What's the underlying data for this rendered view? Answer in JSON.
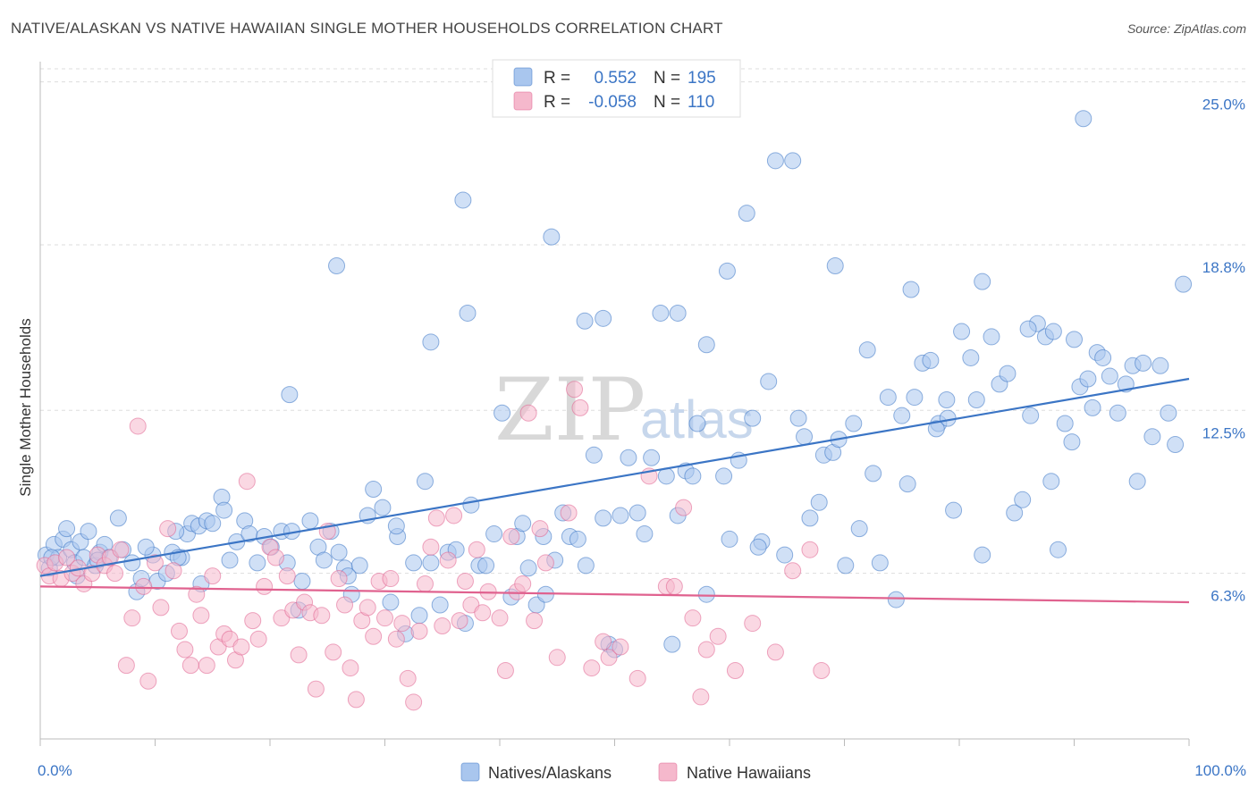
{
  "title": "NATIVE/ALASKAN VS NATIVE HAWAIIAN SINGLE MOTHER HOUSEHOLDS CORRELATION CHART",
  "source": "Source: ZipAtlas.com",
  "watermark": {
    "zip": "ZIP",
    "atlas": "atlas"
  },
  "colors": {
    "blue": "#3b75c5",
    "blue_fill": "#a9c6ee",
    "pink": "#e0628f",
    "pink_fill": "#f5b8cc",
    "grid": "#dddddd"
  },
  "legend": {
    "rows": [
      {
        "r_label": "R =",
        "r_value": "0.552",
        "n_label": "N =",
        "n_value": "195"
      },
      {
        "r_label": "R =",
        "r_value": "-0.058",
        "n_label": "N =",
        "n_value": "110"
      }
    ]
  },
  "chart_data": {
    "type": "scatter",
    "ylabel": "Single Mother Households",
    "xlim": [
      0,
      100
    ],
    "ylim": [
      0,
      25.7
    ],
    "y_ticks": [
      {
        "value": 6.3,
        "label": "6.3%"
      },
      {
        "value": 12.5,
        "label": "12.5%"
      },
      {
        "value": 18.8,
        "label": "18.8%"
      },
      {
        "value": 25.0,
        "label": "25.0%"
      }
    ],
    "x_tick_labels": {
      "left": "0.0%",
      "right": "100.0%"
    },
    "grid": true,
    "legend_position": "top-center",
    "series": [
      {
        "name": "Natives/Alaskans",
        "color": "#3b75c5",
        "trend": {
          "x": [
            0,
            100
          ],
          "y": [
            6.2,
            13.7
          ]
        },
        "points": [
          [
            0.5,
            7.0
          ],
          [
            0.8,
            6.5
          ],
          [
            1.2,
            7.4
          ],
          [
            1.6,
            6.9
          ],
          [
            2.0,
            7.6
          ],
          [
            2.3,
            8.0
          ],
          [
            2.7,
            7.2
          ],
          [
            3.0,
            6.7
          ],
          [
            3.5,
            7.5
          ],
          [
            3.8,
            6.9
          ],
          [
            4.2,
            7.9
          ],
          [
            4.8,
            6.6
          ],
          [
            5.2,
            7.1
          ],
          [
            5.6,
            7.4
          ],
          [
            6.0,
            6.9
          ],
          [
            6.8,
            8.4
          ],
          [
            7.2,
            7.2
          ],
          [
            8.0,
            6.7
          ],
          [
            8.4,
            5.6
          ],
          [
            8.8,
            6.1
          ],
          [
            9.8,
            7.0
          ],
          [
            10.2,
            6.0
          ],
          [
            11.0,
            6.3
          ],
          [
            11.5,
            7.1
          ],
          [
            12.3,
            6.9
          ],
          [
            12.8,
            7.8
          ],
          [
            13.2,
            8.2
          ],
          [
            13.8,
            8.1
          ],
          [
            14.5,
            8.3
          ],
          [
            15.0,
            8.2
          ],
          [
            15.8,
            9.2
          ],
          [
            16.0,
            8.7
          ],
          [
            16.5,
            6.8
          ],
          [
            17.1,
            7.5
          ],
          [
            17.8,
            8.3
          ],
          [
            18.2,
            7.8
          ],
          [
            18.9,
            6.7
          ],
          [
            19.5,
            7.7
          ],
          [
            20.1,
            7.3
          ],
          [
            21.0,
            7.9
          ],
          [
            21.5,
            6.7
          ],
          [
            21.9,
            7.9
          ],
          [
            22.5,
            4.9
          ],
          [
            22.8,
            6.0
          ],
          [
            23.5,
            8.3
          ],
          [
            24.2,
            7.3
          ],
          [
            24.7,
            6.8
          ],
          [
            25.3,
            7.9
          ],
          [
            26.0,
            7.1
          ],
          [
            26.5,
            6.5
          ],
          [
            27.1,
            5.5
          ],
          [
            27.8,
            6.6
          ],
          [
            28.5,
            8.5
          ],
          [
            29.0,
            9.5
          ],
          [
            29.8,
            8.8
          ],
          [
            30.5,
            5.2
          ],
          [
            31.1,
            7.7
          ],
          [
            31.8,
            4.0
          ],
          [
            32.5,
            6.7
          ],
          [
            33.0,
            4.7
          ],
          [
            33.5,
            9.8
          ],
          [
            34.0,
            6.7
          ],
          [
            34.8,
            5.1
          ],
          [
            35.5,
            7.1
          ],
          [
            36.2,
            7.2
          ],
          [
            37.0,
            4.4
          ],
          [
            37.5,
            8.9
          ],
          [
            38.2,
            6.6
          ],
          [
            38.8,
            6.6
          ],
          [
            39.5,
            7.8
          ],
          [
            40.2,
            12.4
          ],
          [
            41.0,
            5.4
          ],
          [
            41.5,
            7.7
          ],
          [
            42.0,
            8.2
          ],
          [
            42.5,
            6.5
          ],
          [
            43.2,
            5.1
          ],
          [
            43.8,
            7.7
          ],
          [
            44.8,
            6.8
          ],
          [
            45.5,
            8.6
          ],
          [
            46.1,
            7.7
          ],
          [
            46.8,
            7.6
          ],
          [
            47.5,
            6.6
          ],
          [
            48.2,
            10.8
          ],
          [
            49.0,
            8.4
          ],
          [
            49.5,
            3.6
          ],
          [
            50.0,
            3.4
          ],
          [
            50.5,
            8.5
          ],
          [
            51.2,
            10.7
          ],
          [
            52.0,
            8.6
          ],
          [
            52.6,
            7.8
          ],
          [
            53.2,
            10.7
          ],
          [
            54.0,
            16.2
          ],
          [
            54.5,
            10.0
          ],
          [
            55.0,
            3.6
          ],
          [
            55.5,
            8.5
          ],
          [
            56.2,
            10.2
          ],
          [
            56.8,
            10.0
          ],
          [
            57.2,
            12.0
          ],
          [
            58.0,
            15.0
          ],
          [
            59.5,
            10.0
          ],
          [
            60.0,
            7.6
          ],
          [
            60.8,
            10.6
          ],
          [
            61.5,
            20.0
          ],
          [
            62.0,
            12.2
          ],
          [
            62.8,
            7.5
          ],
          [
            63.4,
            13.6
          ],
          [
            64.0,
            22.0
          ],
          [
            64.8,
            7.0
          ],
          [
            65.5,
            22.0
          ],
          [
            66.0,
            12.2
          ],
          [
            67.0,
            8.4
          ],
          [
            67.8,
            9.0
          ],
          [
            68.2,
            10.8
          ],
          [
            69.0,
            10.9
          ],
          [
            69.5,
            11.4
          ],
          [
            70.1,
            6.6
          ],
          [
            70.8,
            12.0
          ],
          [
            71.3,
            8.0
          ],
          [
            72.0,
            14.8
          ],
          [
            72.5,
            10.1
          ],
          [
            73.1,
            6.7
          ],
          [
            73.8,
            13.0
          ],
          [
            74.5,
            5.3
          ],
          [
            75.0,
            12.3
          ],
          [
            75.5,
            9.7
          ],
          [
            76.1,
            13.0
          ],
          [
            76.8,
            14.3
          ],
          [
            77.5,
            14.4
          ],
          [
            78.2,
            12.0
          ],
          [
            78.9,
            12.9
          ],
          [
            79.5,
            8.7
          ],
          [
            80.2,
            15.5
          ],
          [
            81.0,
            14.5
          ],
          [
            81.5,
            12.9
          ],
          [
            82.0,
            7.0
          ],
          [
            82.8,
            15.3
          ],
          [
            83.5,
            13.5
          ],
          [
            84.2,
            13.9
          ],
          [
            84.8,
            8.6
          ],
          [
            85.5,
            9.1
          ],
          [
            86.2,
            12.3
          ],
          [
            86.8,
            15.8
          ],
          [
            87.5,
            15.3
          ],
          [
            88.0,
            9.8
          ],
          [
            88.6,
            7.2
          ],
          [
            89.2,
            12.0
          ],
          [
            89.8,
            11.3
          ],
          [
            90.5,
            13.4
          ],
          [
            91.2,
            13.7
          ],
          [
            91.6,
            12.6
          ],
          [
            92.0,
            14.7
          ],
          [
            92.5,
            14.5
          ],
          [
            93.1,
            13.8
          ],
          [
            93.8,
            12.4
          ],
          [
            94.5,
            13.5
          ],
          [
            95.1,
            14.2
          ],
          [
            95.5,
            9.8
          ],
          [
            96.0,
            14.3
          ],
          [
            96.8,
            11.5
          ],
          [
            97.5,
            14.2
          ],
          [
            98.2,
            12.4
          ],
          [
            98.8,
            11.2
          ],
          [
            99.5,
            17.3
          ],
          [
            25.8,
            18.0
          ],
          [
            36.8,
            20.5
          ],
          [
            37.2,
            16.2
          ],
          [
            44.5,
            19.1
          ],
          [
            55.5,
            16.2
          ],
          [
            59.8,
            17.8
          ],
          [
            69.2,
            18.0
          ],
          [
            82.0,
            17.4
          ],
          [
            86.0,
            15.6
          ],
          [
            88.2,
            15.5
          ],
          [
            90.0,
            15.2
          ],
          [
            90.8,
            23.6
          ],
          [
            21.7,
            13.1
          ],
          [
            12.0,
            6.9
          ],
          [
            34.0,
            15.1
          ],
          [
            49.0,
            16.0
          ],
          [
            75.8,
            17.1
          ],
          [
            47.4,
            15.9
          ],
          [
            79.0,
            12.2
          ],
          [
            78.0,
            11.8
          ],
          [
            66.5,
            11.5
          ],
          [
            62.5,
            7.3
          ],
          [
            58.0,
            5.5
          ],
          [
            44.0,
            5.5
          ],
          [
            31.0,
            8.1
          ],
          [
            26.8,
            6.2
          ],
          [
            14.0,
            5.9
          ],
          [
            5.0,
            6.8
          ],
          [
            9.2,
            7.3
          ],
          [
            11.8,
            7.9
          ],
          [
            3.2,
            6.2
          ],
          [
            1.0,
            6.9
          ]
        ]
      },
      {
        "name": "Native Hawaiians",
        "color": "#e0628f",
        "trend": {
          "x": [
            0,
            100
          ],
          "y": [
            5.8,
            5.2
          ]
        },
        "points": [
          [
            0.4,
            6.6
          ],
          [
            0.8,
            6.2
          ],
          [
            1.3,
            6.7
          ],
          [
            1.8,
            6.1
          ],
          [
            2.3,
            6.9
          ],
          [
            2.8,
            6.3
          ],
          [
            3.3,
            6.5
          ],
          [
            3.8,
            5.9
          ],
          [
            4.5,
            6.3
          ],
          [
            5.0,
            7.0
          ],
          [
            5.6,
            6.6
          ],
          [
            6.1,
            6.9
          ],
          [
            6.5,
            6.3
          ],
          [
            7.0,
            7.2
          ],
          [
            7.5,
            2.8
          ],
          [
            8.0,
            4.6
          ],
          [
            8.5,
            11.9
          ],
          [
            9.0,
            5.8
          ],
          [
            9.4,
            2.2
          ],
          [
            10.0,
            6.7
          ],
          [
            10.5,
            5.0
          ],
          [
            11.1,
            8.0
          ],
          [
            11.6,
            6.4
          ],
          [
            12.1,
            4.1
          ],
          [
            12.6,
            3.4
          ],
          [
            13.1,
            2.8
          ],
          [
            13.6,
            5.5
          ],
          [
            14.0,
            4.7
          ],
          [
            14.5,
            2.8
          ],
          [
            15.0,
            6.2
          ],
          [
            15.5,
            3.5
          ],
          [
            16.0,
            4.0
          ],
          [
            16.5,
            3.8
          ],
          [
            17.0,
            3.0
          ],
          [
            17.5,
            3.5
          ],
          [
            18.0,
            9.8
          ],
          [
            18.5,
            4.5
          ],
          [
            19.0,
            3.8
          ],
          [
            19.5,
            5.8
          ],
          [
            20.0,
            7.3
          ],
          [
            20.5,
            6.9
          ],
          [
            21.0,
            4.6
          ],
          [
            21.5,
            6.2
          ],
          [
            22.0,
            4.9
          ],
          [
            22.5,
            3.2
          ],
          [
            23.0,
            5.2
          ],
          [
            23.5,
            4.8
          ],
          [
            24.0,
            1.9
          ],
          [
            24.5,
            4.7
          ],
          [
            25.0,
            7.9
          ],
          [
            25.5,
            3.3
          ],
          [
            26.0,
            6.1
          ],
          [
            26.5,
            5.1
          ],
          [
            27.0,
            2.7
          ],
          [
            27.5,
            1.5
          ],
          [
            28.0,
            4.5
          ],
          [
            28.5,
            5.0
          ],
          [
            29.0,
            3.9
          ],
          [
            29.5,
            6.0
          ],
          [
            30.0,
            4.6
          ],
          [
            30.5,
            6.1
          ],
          [
            31.0,
            3.8
          ],
          [
            31.5,
            4.4
          ],
          [
            32.0,
            2.3
          ],
          [
            32.5,
            1.4
          ],
          [
            33.0,
            4.1
          ],
          [
            33.5,
            5.9
          ],
          [
            34.0,
            7.3
          ],
          [
            34.5,
            8.4
          ],
          [
            35.0,
            4.3
          ],
          [
            35.5,
            6.8
          ],
          [
            36.0,
            8.5
          ],
          [
            36.5,
            4.5
          ],
          [
            37.0,
            6.0
          ],
          [
            37.5,
            5.1
          ],
          [
            38.0,
            7.2
          ],
          [
            38.5,
            4.8
          ],
          [
            39.0,
            5.6
          ],
          [
            40.0,
            4.6
          ],
          [
            40.5,
            2.6
          ],
          [
            41.0,
            7.7
          ],
          [
            41.5,
            5.6
          ],
          [
            42.0,
            5.9
          ],
          [
            42.5,
            12.4
          ],
          [
            43.0,
            4.5
          ],
          [
            43.5,
            8.0
          ],
          [
            44.0,
            6.7
          ],
          [
            45.0,
            3.1
          ],
          [
            46.0,
            8.6
          ],
          [
            46.5,
            13.3
          ],
          [
            47.0,
            12.6
          ],
          [
            48.0,
            2.7
          ],
          [
            49.0,
            3.7
          ],
          [
            49.5,
            3.1
          ],
          [
            50.5,
            3.5
          ],
          [
            52.0,
            2.3
          ],
          [
            53.0,
            10.0
          ],
          [
            54.5,
            5.8
          ],
          [
            55.2,
            5.8
          ],
          [
            56.0,
            8.8
          ],
          [
            56.8,
            4.6
          ],
          [
            57.5,
            1.6
          ],
          [
            58.0,
            3.4
          ],
          [
            59.0,
            3.9
          ],
          [
            60.5,
            2.6
          ],
          [
            62.0,
            4.4
          ],
          [
            64.0,
            3.3
          ],
          [
            65.5,
            6.4
          ],
          [
            67.0,
            7.2
          ],
          [
            68.0,
            2.6
          ]
        ]
      }
    ]
  },
  "bottom_legend": [
    {
      "label": "Natives/Alaskans"
    },
    {
      "label": "Native Hawaiians"
    }
  ]
}
